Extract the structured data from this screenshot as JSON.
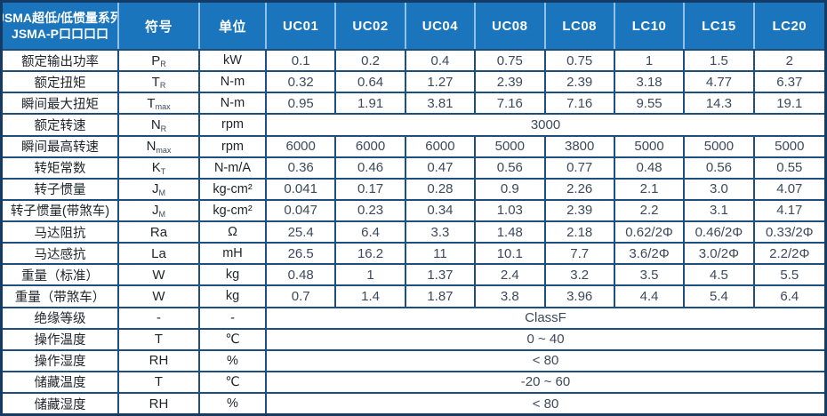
{
  "table": {
    "title_line1": "JSMA超低/低惯量系列",
    "title_line2": "JSMA-P口口口口",
    "symbol_header": "符号",
    "unit_header": "单位",
    "model_columns": [
      "UC01",
      "UC02",
      "UC04",
      "UC08",
      "LC08",
      "LC10",
      "LC15",
      "LC20"
    ],
    "rows": [
      {
        "label": "额定输出功率",
        "sym": "P",
        "sub": "R",
        "unit": "kW",
        "values": [
          "0.1",
          "0.2",
          "0.4",
          "0.75",
          "0.75",
          "1",
          "1.5",
          "2"
        ]
      },
      {
        "label": "额定扭矩",
        "sym": "T",
        "sub": "R",
        "unit": "N-m",
        "values": [
          "0.32",
          "0.64",
          "1.27",
          "2.39",
          "2.39",
          "3.18",
          "4.77",
          "6.37"
        ]
      },
      {
        "label": "瞬间最大扭矩",
        "sym": "T",
        "sub": "max",
        "unit": "N-m",
        "values": [
          "0.95",
          "1.91",
          "3.81",
          "7.16",
          "7.16",
          "9.55",
          "14.3",
          "19.1"
        ]
      },
      {
        "label": "额定转速",
        "sym": "N",
        "sub": "R",
        "unit": "rpm",
        "merged": "3000"
      },
      {
        "label": "瞬间最高转速",
        "sym": "N",
        "sub": "max",
        "unit": "rpm",
        "values": [
          "6000",
          "6000",
          "6000",
          "5000",
          "3800",
          "5000",
          "5000",
          "5000"
        ]
      },
      {
        "label": "转矩常数",
        "sym": "K",
        "sub": "T",
        "unit": "N-m/A",
        "values": [
          "0.36",
          "0.46",
          "0.47",
          "0.56",
          "0.77",
          "0.48",
          "0.56",
          "0.55"
        ]
      },
      {
        "label": "转子惯量",
        "sym": "J",
        "sub": "M",
        "unit": "kg-cm²",
        "values": [
          "0.041",
          "0.17",
          "0.28",
          "0.9",
          "2.26",
          "2.1",
          "3.0",
          "4.07"
        ]
      },
      {
        "label": "转子惯量(带煞车)",
        "sym": "J",
        "sub": "M",
        "unit": "kg-cm²",
        "values": [
          "0.047",
          "0.23",
          "0.34",
          "1.03",
          "2.39",
          "2.2",
          "3.1",
          "4.17"
        ]
      },
      {
        "label": "马达阻抗",
        "sym": "Ra",
        "sub": "",
        "unit": "Ω",
        "values": [
          "25.4",
          "6.4",
          "3.3",
          "1.48",
          "2.18",
          "0.62/2Φ",
          "0.46/2Φ",
          "0.33/2Φ"
        ]
      },
      {
        "label": "马达感抗",
        "sym": "La",
        "sub": "",
        "unit": "mH",
        "values": [
          "26.5",
          "16.2",
          "11",
          "10.1",
          "7.7",
          "3.6/2Φ",
          "3.0/2Φ",
          "2.2/2Φ"
        ]
      },
      {
        "label": "重量（标准）",
        "sym": "W",
        "sub": "",
        "unit": "kg",
        "values": [
          "0.48",
          "1",
          "1.37",
          "2.4",
          "3.2",
          "3.5",
          "4.5",
          "5.5"
        ]
      },
      {
        "label": "重量（带煞车）",
        "sym": "W",
        "sub": "",
        "unit": "kg",
        "values": [
          "0.7",
          "1.4",
          "1.87",
          "3.8",
          "3.96",
          "4.4",
          "5.4",
          "6.4"
        ]
      },
      {
        "label": "绝缘等级",
        "sym": "-",
        "sub": "",
        "unit": "-",
        "merged": "ClassF"
      },
      {
        "label": "操作温度",
        "sym": "T",
        "sub": "",
        "unit": "℃",
        "merged": "0 ~ 40"
      },
      {
        "label": "操作湿度",
        "sym": "RH",
        "sub": "",
        "unit": "%",
        "merged": "< 80"
      },
      {
        "label": "储藏温度",
        "sym": "T",
        "sub": "",
        "unit": "℃",
        "merged": "-20 ~ 60"
      },
      {
        "label": "储藏湿度",
        "sym": "RH",
        "sub": "",
        "unit": "%",
        "merged": "< 80"
      }
    ],
    "colors": {
      "header_bg": "#1b75bc",
      "header_divider": "#8fc0e9",
      "grid": "#1c4e80",
      "border": "#143a66",
      "label_text": "#1f2429",
      "value_text": "#3c4a5c"
    }
  }
}
